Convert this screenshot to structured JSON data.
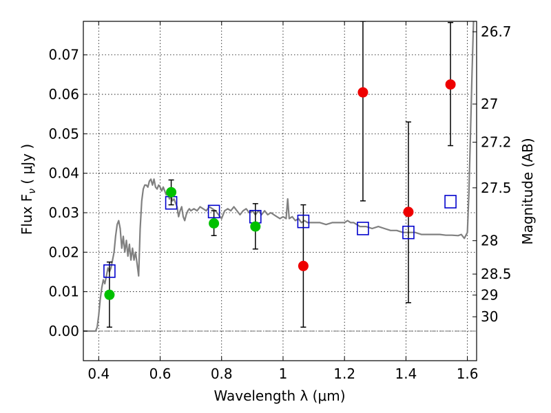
{
  "chart_data": {
    "type": "scatter",
    "xlabel": "Wavelength  λ (μm)",
    "ylabel": "Flux  F",
    "ylabel_sub": "ν",
    "ylabel_units": " ( μJy )",
    "ylabel_right": "Magnitude (AB)",
    "xlim": [
      0.35,
      1.63
    ],
    "ylim": [
      -0.0075,
      0.0785
    ],
    "grid": true,
    "x_ticks": [
      {
        "v": 0.4,
        "label": "0.4"
      },
      {
        "v": 0.6,
        "label": "0.6"
      },
      {
        "v": 0.8,
        "label": "0.8"
      },
      {
        "v": 1.0,
        "label": "1"
      },
      {
        "v": 1.2,
        "label": "1.2"
      },
      {
        "v": 1.4,
        "label": "1.4"
      },
      {
        "v": 1.6,
        "label": "1.6"
      }
    ],
    "y_ticks": [
      {
        "v": 0.0,
        "label": "0.00"
      },
      {
        "v": 0.01,
        "label": "0.01"
      },
      {
        "v": 0.02,
        "label": "0.02"
      },
      {
        "v": 0.03,
        "label": "0.03"
      },
      {
        "v": 0.04,
        "label": "0.04"
      },
      {
        "v": 0.05,
        "label": "0.05"
      },
      {
        "v": 0.06,
        "label": "0.06"
      },
      {
        "v": 0.07,
        "label": "0.07"
      }
    ],
    "mag_ticks": [
      {
        "v": 26.7,
        "label": "26.7"
      },
      {
        "v": 27.0,
        "label": "27"
      },
      {
        "v": 27.2,
        "label": "27.2"
      },
      {
        "v": 27.5,
        "label": "27.5"
      },
      {
        "v": 28.0,
        "label": "28"
      },
      {
        "v": 28.5,
        "label": "28.5"
      },
      {
        "v": 29.0,
        "label": "29"
      },
      {
        "v": 30.0,
        "label": "30"
      }
    ],
    "colors": {
      "model": "#808080",
      "detection": "#00c000",
      "non_detection": "#ee0000",
      "model_flux": "#0000cc",
      "errorbar": "#000000",
      "grid": "#000000"
    },
    "model_sed": [
      [
        0.35,
        0.0
      ],
      [
        0.39,
        0.0
      ],
      [
        0.395,
        0.001
      ],
      [
        0.4,
        0.004
      ],
      [
        0.405,
        0.008
      ],
      [
        0.41,
        0.011
      ],
      [
        0.415,
        0.013
      ],
      [
        0.42,
        0.012
      ],
      [
        0.425,
        0.014
      ],
      [
        0.43,
        0.016
      ],
      [
        0.435,
        0.015
      ],
      [
        0.44,
        0.016
      ],
      [
        0.445,
        0.018
      ],
      [
        0.45,
        0.02
      ],
      [
        0.455,
        0.024
      ],
      [
        0.46,
        0.027
      ],
      [
        0.465,
        0.028
      ],
      [
        0.47,
        0.026
      ],
      [
        0.475,
        0.021
      ],
      [
        0.48,
        0.024
      ],
      [
        0.485,
        0.02
      ],
      [
        0.49,
        0.023
      ],
      [
        0.495,
        0.019
      ],
      [
        0.5,
        0.022
      ],
      [
        0.505,
        0.018
      ],
      [
        0.51,
        0.021
      ],
      [
        0.515,
        0.018
      ],
      [
        0.52,
        0.02
      ],
      [
        0.525,
        0.017
      ],
      [
        0.53,
        0.014
      ],
      [
        0.535,
        0.026
      ],
      [
        0.54,
        0.033
      ],
      [
        0.545,
        0.036
      ],
      [
        0.55,
        0.037
      ],
      [
        0.555,
        0.037
      ],
      [
        0.56,
        0.0365
      ],
      [
        0.565,
        0.038
      ],
      [
        0.57,
        0.0385
      ],
      [
        0.575,
        0.037
      ],
      [
        0.58,
        0.0385
      ],
      [
        0.585,
        0.0365
      ],
      [
        0.59,
        0.036
      ],
      [
        0.595,
        0.037
      ],
      [
        0.6,
        0.0365
      ],
      [
        0.605,
        0.0355
      ],
      [
        0.61,
        0.0365
      ],
      [
        0.615,
        0.0355
      ],
      [
        0.62,
        0.0345
      ],
      [
        0.625,
        0.0355
      ],
      [
        0.63,
        0.0335
      ],
      [
        0.635,
        0.0345
      ],
      [
        0.64,
        0.033
      ],
      [
        0.645,
        0.0335
      ],
      [
        0.65,
        0.0325
      ],
      [
        0.655,
        0.0315
      ],
      [
        0.66,
        0.029
      ],
      [
        0.665,
        0.0305
      ],
      [
        0.67,
        0.0315
      ],
      [
        0.675,
        0.029
      ],
      [
        0.68,
        0.028
      ],
      [
        0.685,
        0.0295
      ],
      [
        0.69,
        0.0305
      ],
      [
        0.695,
        0.031
      ],
      [
        0.7,
        0.0305
      ],
      [
        0.71,
        0.031
      ],
      [
        0.72,
        0.0305
      ],
      [
        0.73,
        0.0315
      ],
      [
        0.74,
        0.031
      ],
      [
        0.75,
        0.0305
      ],
      [
        0.76,
        0.0315
      ],
      [
        0.77,
        0.031
      ],
      [
        0.78,
        0.0305
      ],
      [
        0.79,
        0.0295
      ],
      [
        0.8,
        0.0285
      ],
      [
        0.81,
        0.0305
      ],
      [
        0.82,
        0.031
      ],
      [
        0.83,
        0.0305
      ],
      [
        0.84,
        0.0315
      ],
      [
        0.85,
        0.0305
      ],
      [
        0.86,
        0.0295
      ],
      [
        0.87,
        0.0305
      ],
      [
        0.88,
        0.031
      ],
      [
        0.89,
        0.03
      ],
      [
        0.9,
        0.0305
      ],
      [
        0.91,
        0.0295
      ],
      [
        0.92,
        0.0305
      ],
      [
        0.93,
        0.0295
      ],
      [
        0.94,
        0.0305
      ],
      [
        0.95,
        0.0295
      ],
      [
        0.96,
        0.03
      ],
      [
        0.97,
        0.0295
      ],
      [
        0.98,
        0.029
      ],
      [
        0.99,
        0.0285
      ],
      [
        1.0,
        0.029
      ],
      [
        1.01,
        0.0285
      ],
      [
        1.015,
        0.0335
      ],
      [
        1.02,
        0.0285
      ],
      [
        1.03,
        0.029
      ],
      [
        1.04,
        0.028
      ],
      [
        1.05,
        0.0285
      ],
      [
        1.06,
        0.0275
      ],
      [
        1.07,
        0.028
      ],
      [
        1.08,
        0.0275
      ],
      [
        1.09,
        0.0275
      ],
      [
        1.1,
        0.0275
      ],
      [
        1.12,
        0.0275
      ],
      [
        1.14,
        0.027
      ],
      [
        1.16,
        0.0275
      ],
      [
        1.18,
        0.0275
      ],
      [
        1.2,
        0.0275
      ],
      [
        1.21,
        0.028
      ],
      [
        1.22,
        0.0275
      ],
      [
        1.23,
        0.0275
      ],
      [
        1.24,
        0.027
      ],
      [
        1.25,
        0.0265
      ],
      [
        1.27,
        0.0265
      ],
      [
        1.29,
        0.026
      ],
      [
        1.31,
        0.0265
      ],
      [
        1.33,
        0.026
      ],
      [
        1.35,
        0.0255
      ],
      [
        1.37,
        0.0255
      ],
      [
        1.39,
        0.025
      ],
      [
        1.41,
        0.025
      ],
      [
        1.43,
        0.025
      ],
      [
        1.45,
        0.0245
      ],
      [
        1.47,
        0.0245
      ],
      [
        1.49,
        0.0245
      ],
      [
        1.51,
        0.0245
      ],
      [
        1.53,
        0.0243
      ],
      [
        1.55,
        0.0243
      ],
      [
        1.57,
        0.0242
      ],
      [
        1.58,
        0.0245
      ],
      [
        1.59,
        0.0235
      ],
      [
        1.6,
        0.025
      ],
      [
        1.605,
        0.035
      ],
      [
        1.61,
        0.05
      ],
      [
        1.615,
        0.065
      ],
      [
        1.62,
        0.0785
      ]
    ],
    "detections": [
      {
        "x": 0.435,
        "y": 0.0092,
        "err_lo": 0.001,
        "err_hi": 0.0175
      },
      {
        "x": 0.636,
        "y": 0.0352,
        "err_lo": 0.032,
        "err_hi": 0.0383
      },
      {
        "x": 0.775,
        "y": 0.0273,
        "err_lo": 0.0242,
        "err_hi": 0.0305
      },
      {
        "x": 0.91,
        "y": 0.0265,
        "err_lo": 0.0208,
        "err_hi": 0.0323
      }
    ],
    "non_detections": [
      {
        "x": 1.066,
        "y": 0.0165,
        "err_lo": 0.001,
        "err_hi": 0.032
      },
      {
        "x": 1.26,
        "y": 0.0605,
        "err_lo": 0.033,
        "err_hi": 0.0785
      },
      {
        "x": 1.408,
        "y": 0.0302,
        "err_lo": 0.0072,
        "err_hi": 0.053
      },
      {
        "x": 1.545,
        "y": 0.0625,
        "err_lo": 0.047,
        "err_hi": 0.0782
      }
    ],
    "model_fluxes": [
      {
        "x": 0.435,
        "y": 0.0152
      },
      {
        "x": 0.636,
        "y": 0.0325
      },
      {
        "x": 0.775,
        "y": 0.0303
      },
      {
        "x": 0.91,
        "y": 0.029
      },
      {
        "x": 1.066,
        "y": 0.0278
      },
      {
        "x": 1.26,
        "y": 0.026
      },
      {
        "x": 1.408,
        "y": 0.025
      },
      {
        "x": 1.545,
        "y": 0.0328
      }
    ]
  }
}
